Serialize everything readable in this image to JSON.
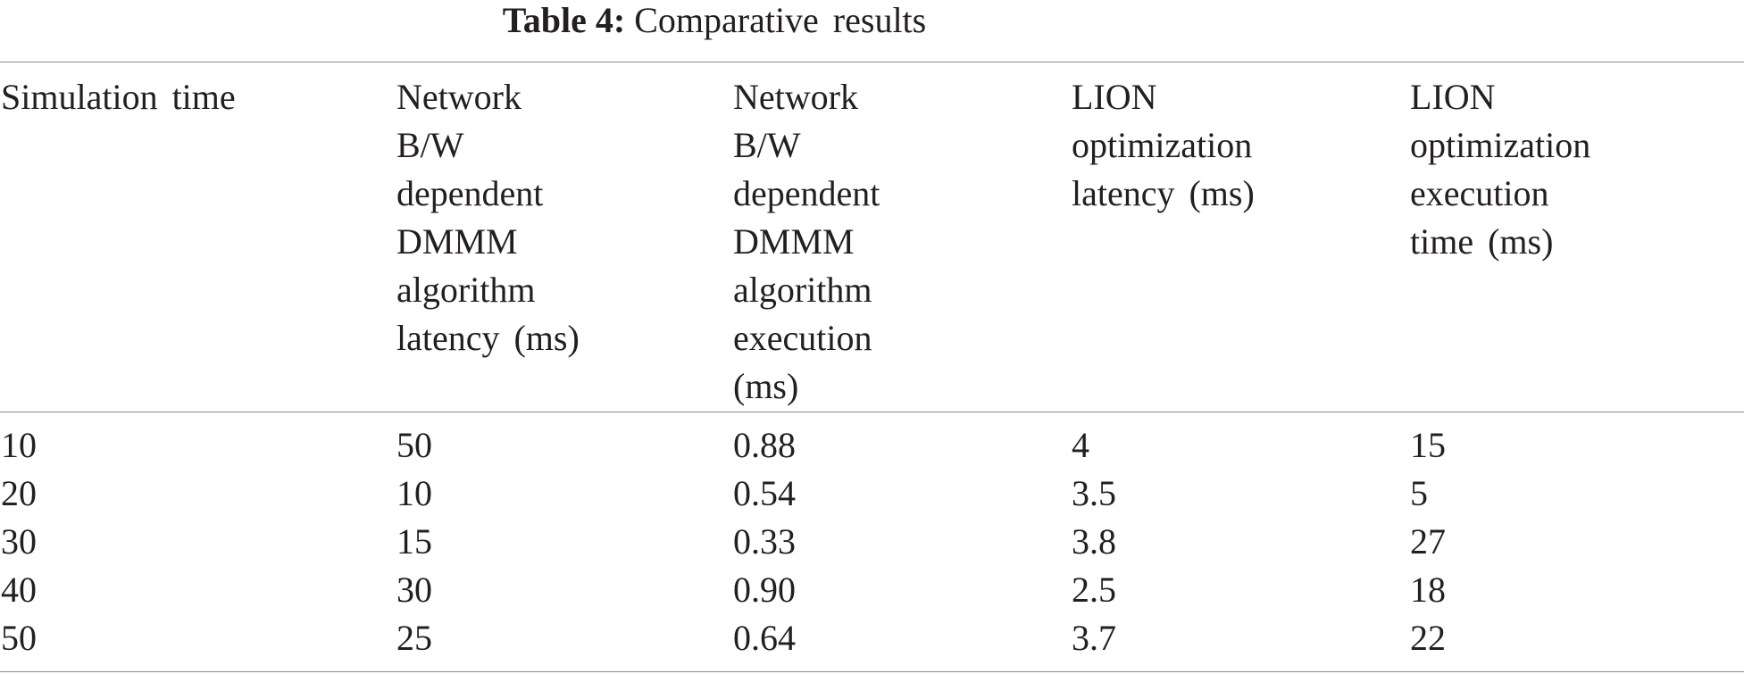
{
  "caption": {
    "label": "Table 4:",
    "text": "Comparative results"
  },
  "columns": [
    {
      "lines": [
        "Simulation time"
      ]
    },
    {
      "lines": [
        "Network",
        "B/W",
        "dependent",
        "DMMM",
        "algorithm",
        "latency (ms)"
      ]
    },
    {
      "lines": [
        "Network",
        "B/W",
        "dependent",
        "DMMM",
        "algorithm",
        "execution",
        "(ms)"
      ]
    },
    {
      "lines": [
        "LION",
        "optimization",
        "latency (ms)"
      ]
    },
    {
      "lines": [
        "LION",
        "optimization",
        "execution",
        "time (ms)"
      ]
    }
  ],
  "rows": [
    [
      "10",
      "50",
      "0.88",
      "4",
      "15"
    ],
    [
      "20",
      "10",
      "0.54",
      "3.5",
      "5"
    ],
    [
      "30",
      "15",
      "0.33",
      "3.8",
      "27"
    ],
    [
      "40",
      "30",
      "0.90",
      "2.5",
      "18"
    ],
    [
      "50",
      "25",
      "0.64",
      "3.7",
      "22"
    ]
  ]
}
